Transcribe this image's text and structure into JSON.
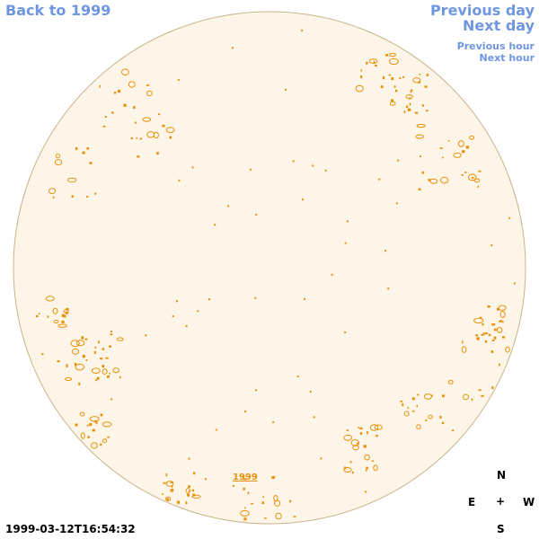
{
  "nav": {
    "back_label": "Back to 1999",
    "prev_day_label": "Previous day",
    "next_day_label": "Next day",
    "prev_hour_label": "Previous hour",
    "next_hour_label": "Next hour"
  },
  "sun": {
    "year_label": "1999",
    "timestamp": "1999-03-12T16:54:32",
    "disk_color": "#fdf6e8",
    "feature_color": "#e8900a"
  },
  "compass": {
    "north": "N",
    "east": "E",
    "center": "+",
    "west": "W",
    "south": "S"
  },
  "colors": {
    "link": "#6f96e0"
  }
}
